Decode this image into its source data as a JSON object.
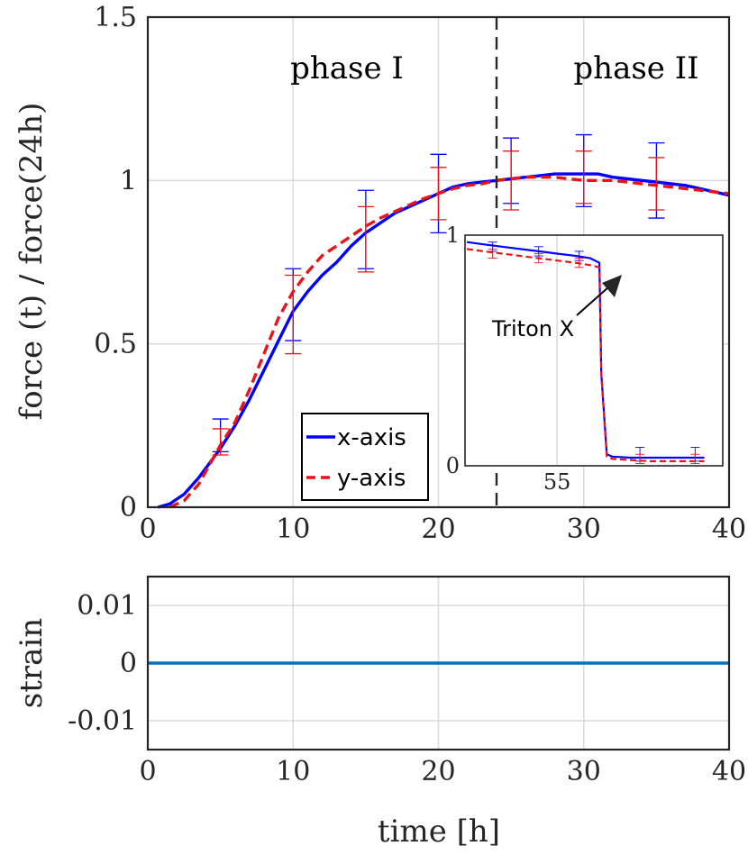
{
  "chart_data": [
    {
      "type": "line",
      "xlabel": "",
      "ylabel": "force (t)  /  force(24h)",
      "xlim": [
        0,
        40
      ],
      "ylim": [
        0,
        1.5
      ],
      "xticks": [
        0,
        10,
        20,
        30,
        40
      ],
      "xtick_labels": [
        "0",
        "10",
        "20",
        "30",
        "40"
      ],
      "yticks": [
        0,
        0.5,
        1,
        1.5
      ],
      "ytick_labels": [
        "0",
        "0.5",
        "1",
        "1.5"
      ],
      "grid": true,
      "legend": "bottom-center",
      "annotations": {
        "phase_labels": [
          "phase I",
          "phase II"
        ],
        "phase_divider_x": 24
      },
      "series": [
        {
          "name": "x-axis",
          "color": "#0000ff",
          "style": "solid",
          "x": [
            0.7,
            1.5,
            2.5,
            3.5,
            4.5,
            5,
            6,
            7,
            8,
            9,
            10,
            11,
            12,
            13,
            14,
            15,
            16,
            17,
            18,
            19,
            20,
            21,
            22,
            23,
            24,
            25,
            26,
            27,
            28,
            29,
            30,
            31,
            32,
            33,
            34,
            35,
            36,
            37,
            38,
            39,
            40
          ],
          "y": [
            0,
            0.01,
            0.04,
            0.09,
            0.15,
            0.18,
            0.25,
            0.33,
            0.42,
            0.51,
            0.6,
            0.66,
            0.71,
            0.75,
            0.8,
            0.84,
            0.87,
            0.9,
            0.92,
            0.94,
            0.96,
            0.98,
            0.99,
            0.995,
            1.0,
            1.005,
            1.01,
            1.015,
            1.02,
            1.02,
            1.02,
            1.02,
            1.01,
            1.005,
            1.0,
            0.995,
            0.99,
            0.985,
            0.975,
            0.965,
            0.955
          ],
          "error_x": [
            5,
            10,
            15,
            20,
            25,
            30,
            35
          ],
          "error_y": [
            0.22,
            0.62,
            0.85,
            0.96,
            1.03,
            1.03,
            1.0
          ],
          "error_half": [
            0.05,
            0.11,
            0.12,
            0.12,
            0.1,
            0.11,
            0.115
          ]
        },
        {
          "name": "y-axis",
          "color": "#e8141b",
          "style": "dashed",
          "x": [
            1.5,
            2.5,
            3.5,
            4.5,
            5,
            6,
            7,
            8,
            9,
            10,
            11,
            12,
            13,
            14,
            15,
            16,
            17,
            18,
            19,
            20,
            21,
            22,
            23,
            24,
            25,
            26,
            27,
            28,
            29,
            30,
            31,
            32,
            33,
            34,
            35,
            36,
            37,
            38,
            39,
            40
          ],
          "y": [
            0,
            0.02,
            0.07,
            0.15,
            0.19,
            0.26,
            0.36,
            0.47,
            0.58,
            0.66,
            0.72,
            0.77,
            0.8,
            0.83,
            0.86,
            0.885,
            0.905,
            0.925,
            0.945,
            0.96,
            0.975,
            0.985,
            0.99,
            1.0,
            1.005,
            1.01,
            1.01,
            1.01,
            1.005,
            1.0,
            1.0,
            1.0,
            0.995,
            0.99,
            0.985,
            0.98,
            0.975,
            0.97,
            0.965,
            0.96
          ],
          "error_x": [
            5,
            10,
            15,
            20,
            25,
            30,
            35
          ],
          "error_y": [
            0.2,
            0.59,
            0.82,
            0.96,
            1.0,
            1.01,
            0.99
          ],
          "error_half": [
            0.04,
            0.12,
            0.1,
            0.08,
            0.09,
            0.08,
            0.08
          ]
        }
      ]
    },
    {
      "type": "line",
      "role": "inset",
      "xlim": [
        50,
        64
      ],
      "ylim": [
        0,
        1
      ],
      "xticks": [
        55
      ],
      "xtick_labels": [
        "55"
      ],
      "yticks": [
        0,
        1
      ],
      "ytick_labels": [
        "0",
        "1"
      ],
      "grid": true,
      "annotations": {
        "arrow_label": "Triton X"
      },
      "series": [
        {
          "color": "#0000ff",
          "style": "solid",
          "x": [
            50.1,
            51,
            52,
            53,
            54,
            55,
            56,
            56.8,
            57.3,
            57.4,
            57.7,
            58,
            59,
            60,
            61,
            62,
            63
          ],
          "y": [
            0.97,
            0.96,
            0.95,
            0.94,
            0.93,
            0.92,
            0.91,
            0.9,
            0.88,
            0.4,
            0.05,
            0.04,
            0.035,
            0.035,
            0.035,
            0.035,
            0.035
          ],
          "error_x": [
            51.5,
            54,
            56.2,
            59.5,
            62.5
          ],
          "error_y": [
            0.95,
            0.93,
            0.91,
            0.05,
            0.05
          ],
          "error_half": [
            0.02,
            0.02,
            0.02,
            0.03,
            0.03
          ]
        },
        {
          "color": "#e8141b",
          "style": "dashed",
          "x": [
            50.1,
            51,
            52,
            53,
            54,
            55,
            56,
            56.8,
            57.3,
            57.4,
            57.7,
            58,
            59,
            60,
            61,
            62,
            63
          ],
          "y": [
            0.94,
            0.93,
            0.92,
            0.91,
            0.9,
            0.89,
            0.88,
            0.87,
            0.86,
            0.4,
            0.04,
            0.03,
            0.025,
            0.02,
            0.02,
            0.02,
            0.02
          ],
          "error_x": [
            51.5,
            54,
            56.2,
            59.5,
            62.5
          ],
          "error_y": [
            0.92,
            0.9,
            0.88,
            0.03,
            0.03
          ],
          "error_half": [
            0.02,
            0.02,
            0.02,
            0.02,
            0.02
          ]
        }
      ]
    },
    {
      "type": "line",
      "xlabel": "time [h]",
      "ylabel": "strain",
      "xlim": [
        0,
        40
      ],
      "ylim": [
        -0.015,
        0.015
      ],
      "xticks": [
        0,
        10,
        20,
        30,
        40
      ],
      "xtick_labels": [
        "0",
        "10",
        "20",
        "30",
        "40"
      ],
      "yticks": [
        -0.01,
        0,
        0.01
      ],
      "ytick_labels": [
        "-0.01",
        "0",
        "0.01"
      ],
      "grid": true,
      "series": [
        {
          "color": "#0072bd",
          "style": "solid",
          "x": [
            0,
            40
          ],
          "y": [
            0,
            0
          ]
        }
      ]
    }
  ]
}
